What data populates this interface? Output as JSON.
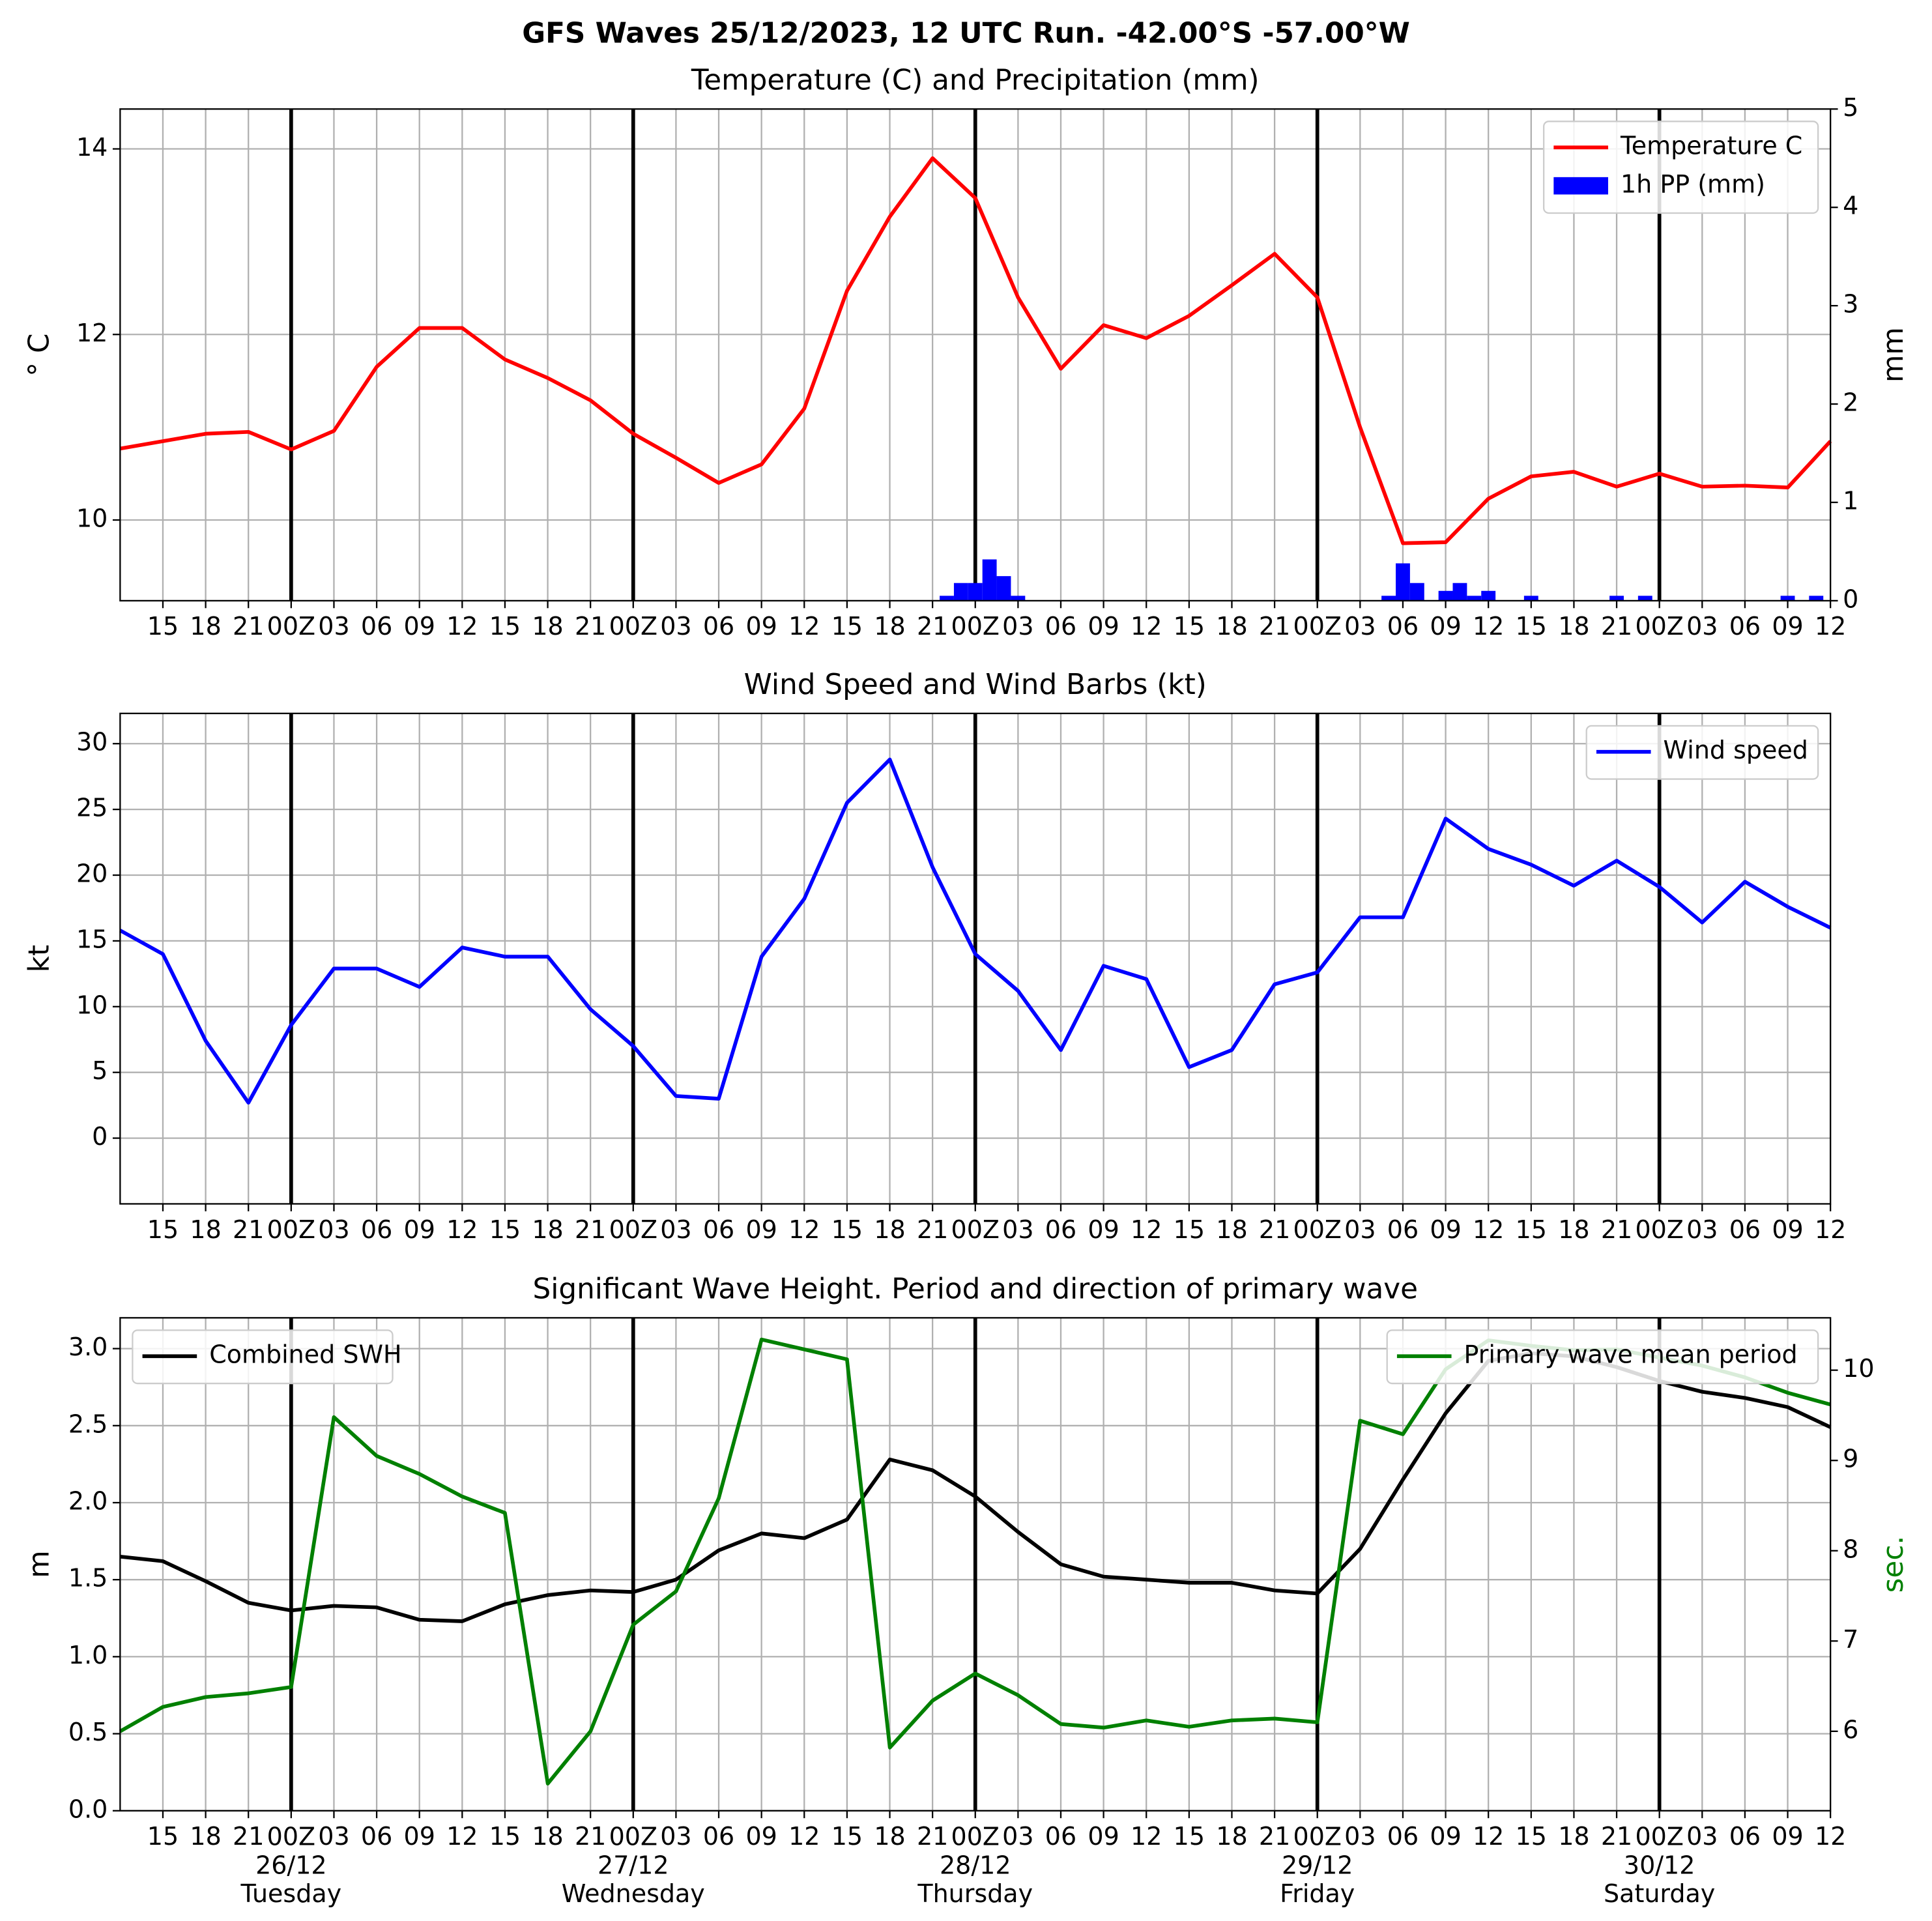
{
  "title": "GFS Waves 25/12/2023, 12 UTC Run. -42.00°S -57.00°W",
  "chart_data": [
    {
      "type": "line",
      "title": "Temperature (C) and Precipitation (mm)",
      "ylabel": "° C",
      "y2label": "mm",
      "xlim": [
        0,
        120
      ],
      "xticks": [
        {
          "value": 3,
          "label": "15"
        },
        {
          "value": 6,
          "label": "18"
        },
        {
          "value": 9,
          "label": "21"
        },
        {
          "value": 12,
          "label": "00Z"
        },
        {
          "value": 15,
          "label": "03"
        },
        {
          "value": 18,
          "label": "06"
        },
        {
          "value": 21,
          "label": "09"
        },
        {
          "value": 24,
          "label": "12"
        },
        {
          "value": 27,
          "label": "15"
        },
        {
          "value": 30,
          "label": "18"
        },
        {
          "value": 33,
          "label": "21"
        },
        {
          "value": 36,
          "label": "00Z"
        },
        {
          "value": 39,
          "label": "03"
        },
        {
          "value": 42,
          "label": "06"
        },
        {
          "value": 45,
          "label": "09"
        },
        {
          "value": 48,
          "label": "12"
        },
        {
          "value": 51,
          "label": "15"
        },
        {
          "value": 54,
          "label": "18"
        },
        {
          "value": 57,
          "label": "21"
        },
        {
          "value": 60,
          "label": "00Z"
        },
        {
          "value": 63,
          "label": "03"
        },
        {
          "value": 66,
          "label": "06"
        },
        {
          "value": 69,
          "label": "09"
        },
        {
          "value": 72,
          "label": "12"
        },
        {
          "value": 75,
          "label": "15"
        },
        {
          "value": 78,
          "label": "18"
        },
        {
          "value": 81,
          "label": "21"
        },
        {
          "value": 84,
          "label": "00Z"
        },
        {
          "value": 87,
          "label": "03"
        },
        {
          "value": 90,
          "label": "06"
        },
        {
          "value": 93,
          "label": "09"
        },
        {
          "value": 96,
          "label": "12"
        },
        {
          "value": 99,
          "label": "15"
        },
        {
          "value": 102,
          "label": "18"
        },
        {
          "value": 105,
          "label": "21"
        },
        {
          "value": 108,
          "label": "00Z"
        },
        {
          "value": 111,
          "label": "03"
        },
        {
          "value": 114,
          "label": "06"
        },
        {
          "value": 117,
          "label": "09"
        },
        {
          "value": 120,
          "label": "12"
        }
      ],
      "day_lines": [
        12,
        36,
        60,
        84,
        108
      ],
      "ylim": [
        9.13,
        14.43
      ],
      "yticks": [
        10,
        12,
        14
      ],
      "y2lim": [
        0,
        5
      ],
      "y2ticks": [
        0,
        1,
        2,
        3,
        4,
        5
      ],
      "grid": true,
      "x": [
        0,
        3,
        6,
        9,
        12,
        15,
        18,
        21,
        24,
        27,
        30,
        33,
        36,
        39,
        42,
        45,
        48,
        51,
        54,
        57,
        60,
        63,
        66,
        69,
        72,
        75,
        78,
        81,
        84,
        87,
        90,
        93,
        96,
        99,
        102,
        105,
        108,
        111,
        114,
        117,
        120
      ],
      "series": [
        {
          "name": "Temperature C",
          "type": "line",
          "color": "#ff0000",
          "legend": "upper right",
          "values": [
            10.77,
            10.85,
            10.93,
            10.95,
            10.76,
            10.96,
            11.65,
            12.07,
            12.07,
            11.73,
            11.53,
            11.29,
            10.93,
            10.67,
            10.4,
            10.6,
            11.2,
            12.47,
            13.27,
            13.9,
            13.47,
            12.4,
            11.63,
            12.1,
            11.96,
            12.2,
            12.53,
            12.87,
            12.4,
            11.0,
            9.75,
            9.76,
            10.23,
            10.47,
            10.52,
            10.36,
            10.5,
            10.36,
            10.37,
            10.35,
            10.85
          ]
        },
        {
          "name": "1h PP (mm)",
          "type": "bar",
          "color": "#0000ff",
          "axis": "y2",
          "legend": "upper right",
          "x": [
            58,
            59,
            60,
            61,
            62,
            63,
            89,
            90,
            91,
            93,
            94,
            95,
            96,
            99,
            105,
            107,
            117,
            119
          ],
          "values": [
            0.05,
            0.18,
            0.18,
            0.42,
            0.25,
            0.05,
            0.05,
            0.38,
            0.18,
            0.1,
            0.18,
            0.05,
            0.1,
            0.05,
            0.05,
            0.05,
            0.05,
            0.05
          ]
        }
      ]
    },
    {
      "type": "line",
      "title": "Wind Speed and Wind Barbs (kt)",
      "ylabel": "kt",
      "xlim": [
        0,
        120
      ],
      "xticks": [
        {
          "value": 3,
          "label": "15"
        },
        {
          "value": 6,
          "label": "18"
        },
        {
          "value": 9,
          "label": "21"
        },
        {
          "value": 12,
          "label": "00Z"
        },
        {
          "value": 15,
          "label": "03"
        },
        {
          "value": 18,
          "label": "06"
        },
        {
          "value": 21,
          "label": "09"
        },
        {
          "value": 24,
          "label": "12"
        },
        {
          "value": 27,
          "label": "15"
        },
        {
          "value": 30,
          "label": "18"
        },
        {
          "value": 33,
          "label": "21"
        },
        {
          "value": 36,
          "label": "00Z"
        },
        {
          "value": 39,
          "label": "03"
        },
        {
          "value": 42,
          "label": "06"
        },
        {
          "value": 45,
          "label": "09"
        },
        {
          "value": 48,
          "label": "12"
        },
        {
          "value": 51,
          "label": "15"
        },
        {
          "value": 54,
          "label": "18"
        },
        {
          "value": 57,
          "label": "21"
        },
        {
          "value": 60,
          "label": "00Z"
        },
        {
          "value": 63,
          "label": "03"
        },
        {
          "value": 66,
          "label": "06"
        },
        {
          "value": 69,
          "label": "09"
        },
        {
          "value": 72,
          "label": "12"
        },
        {
          "value": 75,
          "label": "15"
        },
        {
          "value": 78,
          "label": "18"
        },
        {
          "value": 81,
          "label": "21"
        },
        {
          "value": 84,
          "label": "00Z"
        },
        {
          "value": 87,
          "label": "03"
        },
        {
          "value": 90,
          "label": "06"
        },
        {
          "value": 93,
          "label": "09"
        },
        {
          "value": 96,
          "label": "12"
        },
        {
          "value": 99,
          "label": "15"
        },
        {
          "value": 102,
          "label": "18"
        },
        {
          "value": 105,
          "label": "21"
        },
        {
          "value": 108,
          "label": "00Z"
        },
        {
          "value": 111,
          "label": "03"
        },
        {
          "value": 114,
          "label": "06"
        },
        {
          "value": 117,
          "label": "09"
        },
        {
          "value": 120,
          "label": "12"
        }
      ],
      "day_lines": [
        12,
        36,
        60,
        84,
        108
      ],
      "ylim": [
        -5,
        32.3
      ],
      "yticks": [
        0,
        5,
        10,
        15,
        20,
        25,
        30
      ],
      "grid": true,
      "x": [
        0,
        3,
        6,
        9,
        12,
        15,
        18,
        21,
        24,
        27,
        30,
        33,
        36,
        39,
        42,
        45,
        48,
        51,
        54,
        57,
        60,
        63,
        66,
        69,
        72,
        75,
        78,
        81,
        84,
        87,
        90,
        93,
        96,
        99,
        102,
        105,
        108,
        111,
        114,
        117,
        120
      ],
      "series": [
        {
          "name": "Wind speed",
          "type": "line",
          "color": "#0000ff",
          "legend": "upper right",
          "values": [
            15.8,
            14.0,
            7.4,
            2.7,
            8.6,
            12.9,
            12.9,
            11.5,
            14.5,
            13.8,
            13.8,
            9.8,
            7.0,
            3.2,
            3.0,
            13.8,
            18.2,
            25.5,
            28.8,
            20.6,
            14.0,
            11.2,
            6.7,
            13.1,
            12.1,
            5.4,
            6.7,
            11.7,
            12.6,
            16.8,
            16.8,
            24.3,
            22.0,
            20.8,
            19.2,
            21.1,
            19.1,
            16.4,
            19.5,
            17.6,
            16.0
          ]
        }
      ]
    },
    {
      "type": "line",
      "title": "Significant Wave Height. Period and direction of primary wave",
      "ylabel": "m",
      "y2label": "sec.",
      "y2color": "#008000",
      "xlim": [
        0,
        120
      ],
      "xticks": [
        {
          "value": 3,
          "label": "15"
        },
        {
          "value": 6,
          "label": "18"
        },
        {
          "value": 9,
          "label": "21"
        },
        {
          "value": 12,
          "label": "00Z\n26/12\nTuesday"
        },
        {
          "value": 15,
          "label": "03"
        },
        {
          "value": 18,
          "label": "06"
        },
        {
          "value": 21,
          "label": "09"
        },
        {
          "value": 24,
          "label": "12"
        },
        {
          "value": 27,
          "label": "15"
        },
        {
          "value": 30,
          "label": "18"
        },
        {
          "value": 33,
          "label": "21"
        },
        {
          "value": 36,
          "label": "00Z\n27/12\nWednesday"
        },
        {
          "value": 39,
          "label": "03"
        },
        {
          "value": 42,
          "label": "06"
        },
        {
          "value": 45,
          "label": "09"
        },
        {
          "value": 48,
          "label": "12"
        },
        {
          "value": 51,
          "label": "15"
        },
        {
          "value": 54,
          "label": "18"
        },
        {
          "value": 57,
          "label": "21"
        },
        {
          "value": 60,
          "label": "00Z\n28/12\nThursday"
        },
        {
          "value": 63,
          "label": "03"
        },
        {
          "value": 66,
          "label": "06"
        },
        {
          "value": 69,
          "label": "09"
        },
        {
          "value": 72,
          "label": "12"
        },
        {
          "value": 75,
          "label": "15"
        },
        {
          "value": 78,
          "label": "18"
        },
        {
          "value": 81,
          "label": "21"
        },
        {
          "value": 84,
          "label": "00Z\n29/12\nFriday"
        },
        {
          "value": 87,
          "label": "03"
        },
        {
          "value": 90,
          "label": "06"
        },
        {
          "value": 93,
          "label": "09"
        },
        {
          "value": 96,
          "label": "12"
        },
        {
          "value": 99,
          "label": "15"
        },
        {
          "value": 102,
          "label": "18"
        },
        {
          "value": 105,
          "label": "21"
        },
        {
          "value": 108,
          "label": "00Z\n30/12\nSaturday"
        },
        {
          "value": 111,
          "label": "03"
        },
        {
          "value": 114,
          "label": "06"
        },
        {
          "value": 117,
          "label": "09"
        },
        {
          "value": 120,
          "label": "12"
        }
      ],
      "day_lines": [
        12,
        36,
        60,
        84,
        108
      ],
      "ylim": [
        0,
        3.2
      ],
      "yticks": [
        {
          "value": 0,
          "label": "0.0"
        },
        0.5,
        {
          "value": 1,
          "label": "1.0"
        },
        1.5,
        {
          "value": 2,
          "label": "2.0"
        },
        2.5,
        {
          "value": 3,
          "label": "3.0"
        }
      ],
      "y2lim": [
        5.12,
        10.58
      ],
      "y2ticks": [
        6,
        7,
        8,
        9,
        10
      ],
      "grid": true,
      "x": [
        0,
        3,
        6,
        9,
        12,
        15,
        18,
        21,
        24,
        27,
        30,
        33,
        36,
        39,
        42,
        45,
        48,
        51,
        54,
        57,
        60,
        63,
        66,
        69,
        72,
        75,
        78,
        81,
        84,
        87,
        90,
        93,
        96,
        99,
        102,
        105,
        108,
        111,
        114,
        117,
        120
      ],
      "series": [
        {
          "name": "Combined SWH",
          "type": "line",
          "color": "#000000",
          "legend": "upper left",
          "values": [
            1.65,
            1.62,
            1.49,
            1.35,
            1.3,
            1.33,
            1.32,
            1.24,
            1.23,
            1.34,
            1.4,
            1.43,
            1.42,
            1.5,
            1.69,
            1.8,
            1.77,
            1.89,
            2.28,
            2.21,
            2.04,
            1.81,
            1.6,
            1.52,
            1.5,
            1.48,
            1.48,
            1.43,
            1.41,
            1.7,
            2.15,
            2.58,
            2.92,
            2.97,
            2.95,
            2.88,
            2.79,
            2.72,
            2.68,
            2.62,
            2.49
          ]
        },
        {
          "name": "Primary wave mean period",
          "type": "line",
          "color": "#008000",
          "axis": "y2",
          "legend": "upper right",
          "values": [
            6.0,
            6.27,
            6.38,
            6.42,
            6.49,
            9.48,
            9.05,
            8.85,
            8.6,
            8.42,
            5.42,
            6.0,
            7.18,
            7.55,
            8.58,
            10.34,
            10.23,
            10.12,
            5.82,
            6.34,
            6.64,
            6.4,
            6.08,
            6.04,
            6.12,
            6.05,
            6.12,
            6.14,
            6.1,
            9.44,
            9.29,
            10.01,
            10.33,
            10.27,
            10.22,
            10.23,
            10.14,
            10.05,
            9.92,
            9.75,
            9.62
          ]
        }
      ]
    }
  ]
}
